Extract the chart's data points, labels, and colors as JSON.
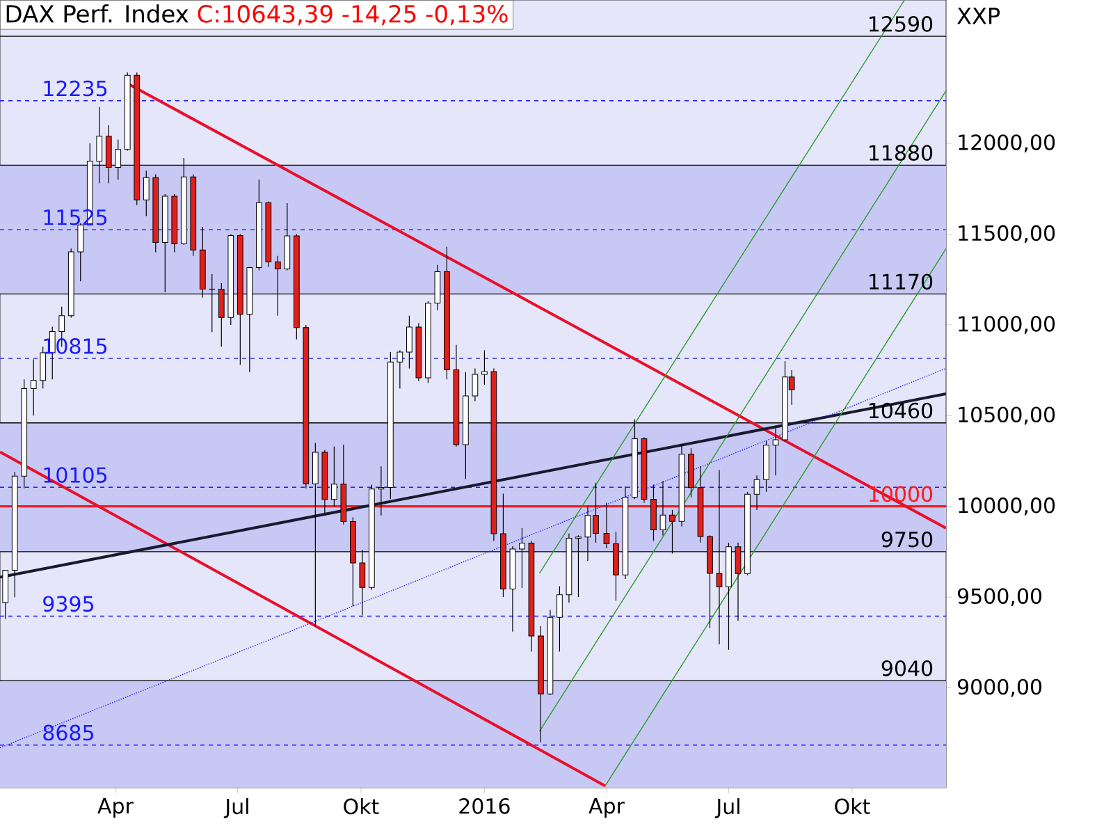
{
  "chart_data": {
    "type": "candlestick",
    "title": "DAX Perf. Index",
    "subtitle": "C:10643,39 -14,25 -0,13%",
    "annotations": [
      "XXP"
    ],
    "xlim": [
      "2015-01-05",
      "2016-12-10"
    ],
    "ylim": [
      8450,
      12790
    ],
    "xticks": [
      {
        "value": "2015-04-01",
        "label": "Apr"
      },
      {
        "value": "2015-07-01",
        "label": "Jul"
      },
      {
        "value": "2015-10-01",
        "label": "Okt"
      },
      {
        "value": "2016-01-01",
        "label": "2016"
      },
      {
        "value": "2016-04-01",
        "label": "Apr"
      },
      {
        "value": "2016-07-01",
        "label": "Jul"
      },
      {
        "value": "2016-10-01",
        "label": "Okt"
      }
    ],
    "yticks": [
      {
        "value": 9000,
        "label": "9000,00"
      },
      {
        "value": 9500,
        "label": "9500,00"
      },
      {
        "value": 10000,
        "label": "10000,00"
      },
      {
        "value": 10500,
        "label": "10500,00"
      },
      {
        "value": 11000,
        "label": "11000,00"
      },
      {
        "value": 11500,
        "label": "11500,00"
      },
      {
        "value": 12000,
        "label": "12000,00"
      }
    ],
    "x": [
      "2015-01-09",
      "2015-01-16",
      "2015-01-23",
      "2015-01-30",
      "2015-02-06",
      "2015-02-13",
      "2015-02-20",
      "2015-02-27",
      "2015-03-06",
      "2015-03-13",
      "2015-03-20",
      "2015-03-27",
      "2015-04-03",
      "2015-04-10",
      "2015-04-17",
      "2015-04-24",
      "2015-05-01",
      "2015-05-08",
      "2015-05-15",
      "2015-05-22",
      "2015-05-29",
      "2015-06-05",
      "2015-06-12",
      "2015-06-19",
      "2015-06-26",
      "2015-07-03",
      "2015-07-10",
      "2015-07-17",
      "2015-07-24",
      "2015-07-31",
      "2015-08-07",
      "2015-08-14",
      "2015-08-21",
      "2015-08-28",
      "2015-09-04",
      "2015-09-11",
      "2015-09-18",
      "2015-09-25",
      "2015-10-02",
      "2015-10-09",
      "2015-10-16",
      "2015-10-23",
      "2015-10-30",
      "2015-11-06",
      "2015-11-13",
      "2015-11-20",
      "2015-11-27",
      "2015-12-04",
      "2015-12-11",
      "2015-12-18",
      "2015-12-25",
      "2016-01-01",
      "2016-01-08",
      "2016-01-15",
      "2016-01-22",
      "2016-01-29",
      "2016-02-05",
      "2016-02-12",
      "2016-02-19",
      "2016-02-26",
      "2016-03-04",
      "2016-03-11",
      "2016-03-18",
      "2016-03-24",
      "2016-04-01",
      "2016-04-08",
      "2016-04-15",
      "2016-04-22",
      "2016-04-29",
      "2016-05-06",
      "2016-05-13",
      "2016-05-20",
      "2016-05-27",
      "2016-06-03",
      "2016-06-10",
      "2016-06-17",
      "2016-06-24",
      "2016-07-01",
      "2016-07-08",
      "2016-07-15",
      "2016-07-22",
      "2016-07-29",
      "2016-08-05",
      "2016-08-12",
      "2016-08-17"
    ],
    "ohlc": [
      [
        9470,
        9650,
        9380,
        9648
      ],
      [
        9648,
        10190,
        9500,
        10167
      ],
      [
        10167,
        10700,
        10100,
        10649
      ],
      [
        10649,
        10810,
        10500,
        10694
      ],
      [
        10694,
        10880,
        10650,
        10846
      ],
      [
        10846,
        10990,
        10700,
        10963
      ],
      [
        10963,
        11100,
        10880,
        11050
      ],
      [
        11050,
        11420,
        11040,
        11402
      ],
      [
        11402,
        11560,
        11240,
        11551
      ],
      [
        11551,
        12000,
        11550,
        11901
      ],
      [
        11901,
        12200,
        11780,
        12039
      ],
      [
        12039,
        12100,
        11780,
        11868
      ],
      [
        11868,
        12020,
        11800,
        11967
      ],
      [
        11967,
        12390,
        11960,
        12375
      ],
      [
        12375,
        12390,
        11660,
        11689
      ],
      [
        11689,
        11850,
        11600,
        11811
      ],
      [
        11811,
        11830,
        11400,
        11454
      ],
      [
        11454,
        11720,
        11180,
        11709
      ],
      [
        11709,
        11720,
        11400,
        11447
      ],
      [
        11447,
        11920,
        11440,
        11815
      ],
      [
        11815,
        11830,
        11380,
        11413
      ],
      [
        11413,
        11540,
        11150,
        11197
      ],
      [
        11197,
        11280,
        10960,
        11196
      ],
      [
        11196,
        11230,
        10880,
        11041
      ],
      [
        11041,
        11500,
        11000,
        11492
      ],
      [
        11492,
        11500,
        10780,
        11058
      ],
      [
        11058,
        11320,
        10740,
        11316
      ],
      [
        11316,
        11800,
        11300,
        11673
      ],
      [
        11673,
        11680,
        11320,
        11347
      ],
      [
        11347,
        11380,
        11050,
        11308
      ],
      [
        11308,
        11670,
        11300,
        11490
      ],
      [
        11490,
        11500,
        10920,
        10985
      ],
      [
        10985,
        11000,
        10100,
        10124
      ],
      [
        10124,
        10350,
        9340,
        10298
      ],
      [
        10298,
        10310,
        9950,
        10038
      ],
      [
        10038,
        10330,
        10000,
        10123
      ],
      [
        10123,
        10340,
        9900,
        9916
      ],
      [
        9916,
        9940,
        9450,
        9688
      ],
      [
        9688,
        9760,
        9400,
        9553
      ],
      [
        9553,
        10120,
        9540,
        10096
      ],
      [
        10096,
        10220,
        9950,
        10104
      ],
      [
        10104,
        10850,
        10040,
        10795
      ],
      [
        10795,
        10860,
        10650,
        10850
      ],
      [
        10850,
        11050,
        10760,
        10988
      ],
      [
        10988,
        11010,
        10690,
        10708
      ],
      [
        10708,
        11130,
        10680,
        11119
      ],
      [
        11119,
        11330,
        11080,
        11293
      ],
      [
        11293,
        11430,
        10700,
        10752
      ],
      [
        10752,
        10890,
        10330,
        10340
      ],
      [
        10340,
        10740,
        10150,
        10608
      ],
      [
        10608,
        10760,
        10580,
        10727
      ],
      [
        10727,
        10860,
        10670,
        10743
      ],
      [
        10743,
        10760,
        9810,
        9849
      ],
      [
        9849,
        10070,
        9500,
        9545
      ],
      [
        9545,
        9780,
        9310,
        9765
      ],
      [
        9765,
        9880,
        9550,
        9798
      ],
      [
        9798,
        9810,
        9200,
        9286
      ],
      [
        9286,
        9340,
        8700,
        8967
      ],
      [
        8967,
        9430,
        8960,
        9388
      ],
      [
        9388,
        9560,
        9200,
        9513
      ],
      [
        9513,
        9850,
        9470,
        9824
      ],
      [
        9824,
        9840,
        9500,
        9831
      ],
      [
        9831,
        10000,
        9700,
        9950
      ],
      [
        9950,
        10130,
        9800,
        9851
      ],
      [
        9851,
        10020,
        9770,
        9794
      ],
      [
        9794,
        9860,
        9480,
        9622
      ],
      [
        9622,
        10110,
        9600,
        10051
      ],
      [
        10051,
        10480,
        10040,
        10373
      ],
      [
        10373,
        10380,
        10020,
        10039
      ],
      [
        10039,
        10120,
        9810,
        9870
      ],
      [
        9870,
        10140,
        9840,
        9952
      ],
      [
        9952,
        9980,
        9740,
        9917
      ],
      [
        9917,
        10340,
        9890,
        10287
      ],
      [
        10287,
        10320,
        10050,
        10103
      ],
      [
        10103,
        10220,
        9800,
        9834
      ],
      [
        9834,
        9840,
        9330,
        9631
      ],
      [
        9631,
        10200,
        9240,
        9557
      ],
      [
        9557,
        9800,
        9210,
        9777
      ],
      [
        9777,
        9800,
        9370,
        9630
      ],
      [
        9630,
        10080,
        9620,
        10067
      ],
      [
        10067,
        10170,
        9980,
        10147
      ],
      [
        10147,
        10360,
        10080,
        10337
      ],
      [
        10337,
        10430,
        10170,
        10367
      ],
      [
        10367,
        10800,
        10360,
        10713
      ],
      [
        10713,
        10750,
        10560,
        10643
      ]
    ],
    "series": [
      {
        "type": "line",
        "color": "#e8102a",
        "line_style": "solid",
        "x": [
          "2015-04-10",
          "2016-12-10"
        ],
        "values": [
          12330,
          9880
        ]
      },
      {
        "type": "line",
        "color": "#e8102a",
        "line_style": "solid",
        "x": [
          "2015-01-05",
          "2016-03-31"
        ],
        "values": [
          10300,
          8460
        ]
      },
      {
        "type": "line",
        "color": "#1a1a2e",
        "line_style": "solid",
        "x": [
          "2015-01-05",
          "2016-12-10"
        ],
        "values": [
          9610,
          10620
        ]
      },
      {
        "type": "line",
        "color": "#2a9a2a",
        "line_style": "solid",
        "x": [
          "2016-02-11",
          "2016-12-10"
        ],
        "values": [
          8760,
          12290
        ]
      },
      {
        "type": "line",
        "color": "#2a9a2a",
        "line_style": "solid",
        "x": [
          "2016-03-31",
          "2016-12-10"
        ],
        "values": [
          8460,
          11420
        ]
      },
      {
        "type": "line",
        "color": "#2a9a2a",
        "line_style": "solid",
        "x": [
          "2016-02-11",
          "2016-11-09"
        ],
        "values": [
          9631,
          12790
        ]
      },
      {
        "type": "line",
        "color": "#1a1aff",
        "line_style": "dotted",
        "x": [
          "2015-01-05",
          "2016-12-10"
        ],
        "values": [
          8670,
          10760
        ]
      }
    ],
    "bands": [
      {
        "axis": "y",
        "from": 11170,
        "to": 11880,
        "color": "#c8c8f5"
      },
      {
        "axis": "y",
        "from": 9750,
        "to": 10460,
        "color": "#c8c8f5"
      },
      {
        "axis": "y",
        "from": 8450,
        "to": 9040,
        "color": "#c8c8f5"
      }
    ],
    "ref_lines": [
      {
        "axis": "y",
        "value": 12235,
        "label": "12235",
        "color": "#1a1aff",
        "line_style": "dashed"
      },
      {
        "axis": "y",
        "value": 11525,
        "label": "11525",
        "color": "#1a1aff",
        "line_style": "dashed"
      },
      {
        "axis": "y",
        "value": 10815,
        "label": "10815",
        "color": "#1a1aff",
        "line_style": "dashed"
      },
      {
        "axis": "y",
        "value": 10105,
        "label": "10105",
        "color": "#1a1aff",
        "line_style": "dashed"
      },
      {
        "axis": "y",
        "value": 9395,
        "label": "9395",
        "color": "#1a1aff",
        "line_style": "dashed"
      },
      {
        "axis": "y",
        "value": 8685,
        "label": "8685",
        "color": "#1a1aff",
        "line_style": "dashed"
      },
      {
        "axis": "y",
        "value": 12590,
        "label": "12590",
        "color": "#000000",
        "line_style": "solid"
      },
      {
        "axis": "y",
        "value": 11880,
        "label": "11880",
        "color": "#000000",
        "line_style": "solid"
      },
      {
        "axis": "y",
        "value": 11170,
        "label": "11170",
        "color": "#000000",
        "line_style": "solid"
      },
      {
        "axis": "y",
        "value": 10460,
        "label": "10460",
        "color": "#000000",
        "line_style": "solid"
      },
      {
        "axis": "y",
        "value": 9750,
        "label": "9750",
        "color": "#000000",
        "line_style": "solid"
      },
      {
        "axis": "y",
        "value": 9040,
        "label": "9040",
        "color": "#000000",
        "line_style": "solid"
      },
      {
        "axis": "y",
        "value": 10000,
        "label": "10000",
        "color": "#ff1a1a",
        "line_style": "solid"
      }
    ]
  }
}
